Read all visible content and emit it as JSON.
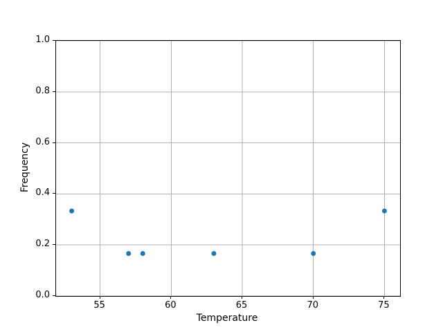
{
  "chart_data": {
    "type": "scatter",
    "title": "",
    "xlabel": "Temperature",
    "ylabel": "Frequency",
    "xlim": [
      51.9,
      76.1
    ],
    "ylim": [
      0.0,
      1.0
    ],
    "grid": true,
    "legend": false,
    "point_color": "#1f77b4",
    "grid_color": "#b0b0b0",
    "spine_color": "#000000",
    "marker_radius_px": 3.5,
    "xticks": [
      {
        "value": 55,
        "label": "55"
      },
      {
        "value": 60,
        "label": "60"
      },
      {
        "value": 65,
        "label": "65"
      },
      {
        "value": 70,
        "label": "70"
      },
      {
        "value": 75,
        "label": "75"
      }
    ],
    "yticks": [
      {
        "value": 0.0,
        "label": "0.0"
      },
      {
        "value": 0.2,
        "label": "0.2"
      },
      {
        "value": 0.4,
        "label": "0.4"
      },
      {
        "value": 0.6,
        "label": "0.6"
      },
      {
        "value": 0.8,
        "label": "0.8"
      },
      {
        "value": 1.0,
        "label": "1.0"
      }
    ],
    "points": [
      {
        "x": 53,
        "y": 0.3333
      },
      {
        "x": 57,
        "y": 0.1667
      },
      {
        "x": 58,
        "y": 0.1667
      },
      {
        "x": 63,
        "y": 0.1667
      },
      {
        "x": 70,
        "y": 0.1667
      },
      {
        "x": 75,
        "y": 0.3333
      }
    ]
  }
}
